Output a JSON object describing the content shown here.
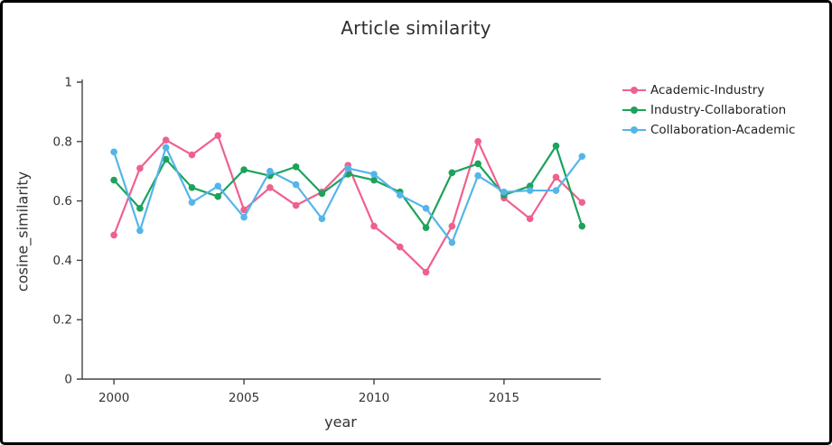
{
  "chart": {
    "title": "Article similarity",
    "x_label": "year",
    "y_label": "cosine_similarity"
  },
  "chart_data": {
    "type": "line",
    "title": "Article similarity",
    "xlabel": "year",
    "ylabel": "cosine_similarity",
    "x": [
      2000,
      2001,
      2002,
      2003,
      2004,
      2005,
      2006,
      2007,
      2008,
      2009,
      2010,
      2011,
      2012,
      2013,
      2014,
      2015,
      2016,
      2017,
      2018
    ],
    "series": [
      {
        "name": "Academic-Industry",
        "color": "#ef608f",
        "values": [
          0.485,
          0.71,
          0.805,
          0.755,
          0.82,
          0.57,
          0.645,
          0.585,
          0.63,
          0.72,
          0.515,
          0.445,
          0.36,
          0.515,
          0.8,
          0.61,
          0.54,
          0.68,
          0.595
        ]
      },
      {
        "name": "Industry-Collaboration",
        "color": "#1ca25c",
        "values": [
          0.67,
          0.575,
          0.74,
          0.645,
          0.615,
          0.705,
          0.685,
          0.715,
          0.625,
          0.69,
          0.67,
          0.63,
          0.51,
          0.695,
          0.725,
          0.62,
          0.65,
          0.785,
          0.515
        ]
      },
      {
        "name": "Collaboration-Academic",
        "color": "#55b5e9",
        "values": [
          0.765,
          0.5,
          0.78,
          0.595,
          0.65,
          0.545,
          0.7,
          0.655,
          0.54,
          0.71,
          0.69,
          0.62,
          0.575,
          0.46,
          0.685,
          0.63,
          0.635,
          0.635,
          0.75
        ]
      }
    ],
    "x_ticks": [
      2000,
      2005,
      2010,
      2015
    ],
    "y_ticks": [
      0,
      0.2,
      0.4,
      0.6,
      0.8,
      1
    ],
    "y_tick_labels": [
      "0",
      "0.2",
      "0.4",
      "0.6",
      "0.8",
      "1"
    ],
    "xlim": [
      1998.78,
      2018.65
    ],
    "ylim": [
      0,
      1
    ],
    "grid": false,
    "legend_position": "right",
    "axis_color": "#444444",
    "tick_text_color": "#333333"
  }
}
